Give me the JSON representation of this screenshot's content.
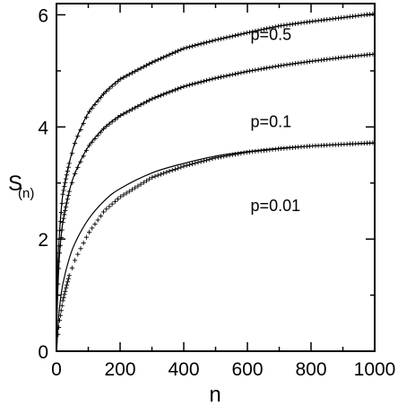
{
  "chart_data": {
    "type": "line",
    "xlabel": "n",
    "ylabel_main": "S",
    "ylabel_sub": "(n)",
    "xlim": [
      0,
      1000
    ],
    "ylim": [
      0,
      6.2
    ],
    "x_ticks": [
      0,
      200,
      400,
      600,
      800,
      1000
    ],
    "y_ticks": [
      0,
      2,
      4,
      6
    ],
    "x_tick_labels": [
      "0",
      "200",
      "400",
      "600",
      "800",
      "1000"
    ],
    "y_tick_labels": [
      "0",
      "2",
      "4",
      "6"
    ],
    "grid": false,
    "annotations": [
      {
        "text": "p=0.5",
        "x": 610,
        "y": 5.55
      },
      {
        "text": "p=0.1",
        "x": 610,
        "y": 4.0
      },
      {
        "text": "p=0.01",
        "x": 610,
        "y": 2.5
      }
    ],
    "series": [
      {
        "kind": "line",
        "x": [
          1,
          2,
          5,
          10,
          20,
          40,
          60,
          100,
          150,
          200,
          300,
          400,
          500,
          600,
          700,
          800,
          900,
          1000
        ],
        "y": [
          0.55,
          0.9,
          1.6,
          2.15,
          2.8,
          3.35,
          3.75,
          4.25,
          4.6,
          4.85,
          5.15,
          5.4,
          5.55,
          5.68,
          5.8,
          5.88,
          5.95,
          6.02
        ]
      },
      {
        "kind": "markers",
        "x": [
          5,
          10,
          20,
          40,
          60,
          100,
          150,
          200,
          300,
          400,
          500,
          600,
          700,
          800,
          900,
          1000
        ],
        "y": [
          1.6,
          2.15,
          2.8,
          3.35,
          3.75,
          4.25,
          4.6,
          4.85,
          5.15,
          5.4,
          5.55,
          5.68,
          5.8,
          5.88,
          5.95,
          6.02
        ]
      },
      {
        "kind": "line",
        "x": [
          1,
          2,
          5,
          10,
          20,
          40,
          60,
          100,
          150,
          200,
          300,
          400,
          500,
          600,
          700,
          800,
          900,
          1000
        ],
        "y": [
          0.35,
          0.65,
          1.2,
          1.75,
          2.3,
          2.85,
          3.2,
          3.65,
          3.98,
          4.2,
          4.5,
          4.72,
          4.87,
          4.99,
          5.09,
          5.17,
          5.24,
          5.3
        ]
      },
      {
        "kind": "markers",
        "x": [
          5,
          10,
          20,
          40,
          60,
          100,
          150,
          200,
          300,
          400,
          500,
          600,
          700,
          800,
          900,
          1000
        ],
        "y": [
          1.2,
          1.75,
          2.3,
          2.85,
          3.2,
          3.65,
          3.98,
          4.2,
          4.5,
          4.72,
          4.87,
          4.99,
          5.09,
          5.17,
          5.24,
          5.3
        ]
      },
      {
        "kind": "line",
        "x": [
          1,
          2,
          5,
          10,
          20,
          40,
          60,
          100,
          150,
          200,
          300,
          400,
          500,
          600,
          700,
          800,
          900,
          1000
        ],
        "y": [
          0.05,
          0.15,
          0.45,
          0.8,
          1.2,
          1.65,
          1.95,
          2.35,
          2.68,
          2.9,
          3.18,
          3.35,
          3.48,
          3.56,
          3.62,
          3.66,
          3.69,
          3.71
        ]
      },
      {
        "kind": "markers",
        "x": [
          5,
          10,
          20,
          40,
          60,
          100,
          150,
          200,
          300,
          400,
          500,
          600,
          700,
          800,
          900,
          1000
        ],
        "y": [
          0.3,
          0.55,
          0.9,
          1.35,
          1.65,
          2.1,
          2.5,
          2.75,
          3.1,
          3.3,
          3.45,
          3.55,
          3.61,
          3.66,
          3.69,
          3.72
        ]
      }
    ]
  }
}
